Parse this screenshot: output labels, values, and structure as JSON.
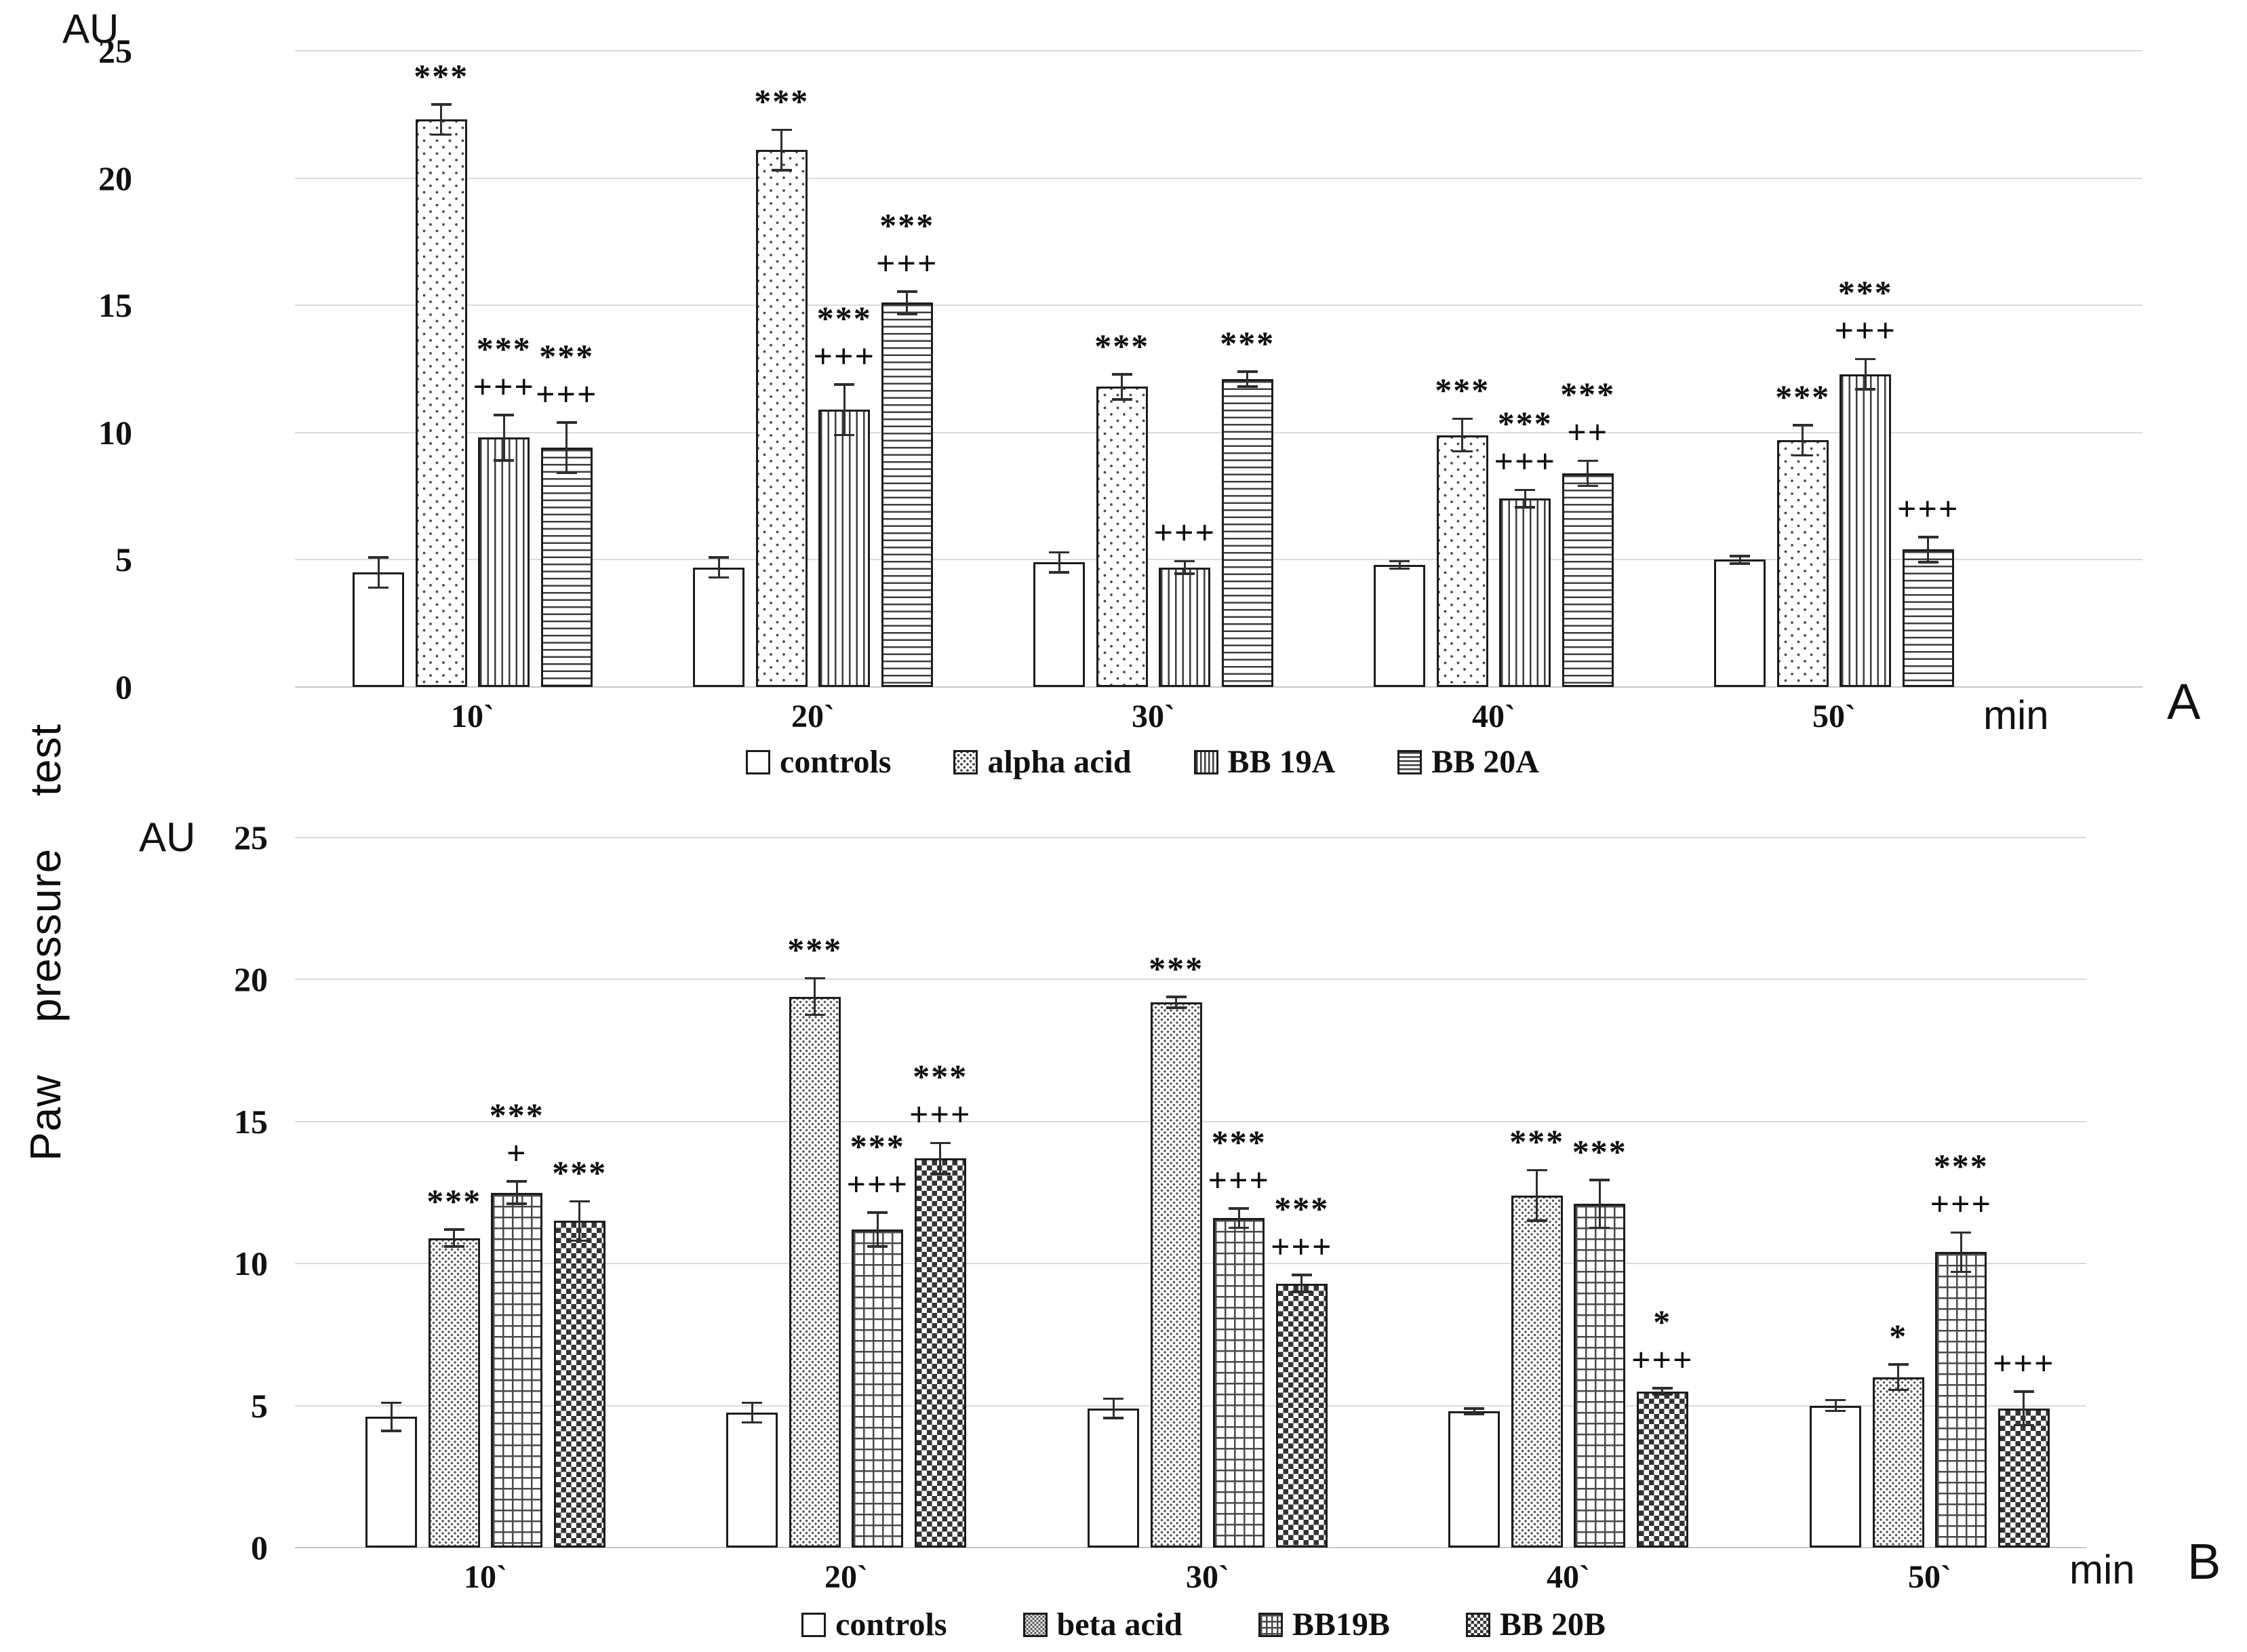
{
  "figure": {
    "y_axis_title_rotated": "Paw  pressure  test"
  },
  "chart_data": [
    {
      "type": "bar",
      "panel_label": "A",
      "y_unit": "AU",
      "x_unit": "min",
      "ylim": [
        0,
        25
      ],
      "yticks": [
        0,
        5,
        10,
        15,
        20,
        25
      ],
      "grid": true,
      "legend_position": "bottom",
      "categories": [
        "10`",
        "20`",
        "30`",
        "40`",
        "50`"
      ],
      "series": [
        {
          "name": "controls",
          "pattern": "open",
          "values": [
            4.5,
            4.7,
            4.9,
            4.8,
            5.0
          ],
          "errors": [
            0.6,
            0.4,
            0.4,
            0.15,
            0.15
          ],
          "annotations": [
            "",
            "",
            "",
            "",
            ""
          ]
        },
        {
          "name": "alpha acid",
          "pattern": "dots-sparse",
          "values": [
            22.3,
            21.1,
            11.8,
            9.9,
            9.7
          ],
          "errors": [
            0.6,
            0.8,
            0.5,
            0.65,
            0.6
          ],
          "annotations": [
            "***",
            "***",
            "***",
            "***",
            "***"
          ]
        },
        {
          "name": "BB 19A",
          "pattern": "vertical-lines",
          "values": [
            9.8,
            10.9,
            4.7,
            7.4,
            12.3
          ],
          "errors": [
            0.9,
            1.0,
            0.25,
            0.35,
            0.6
          ],
          "annotations": [
            "***\n+++",
            "***\n+++",
            "+++",
            "***\n+++",
            "***\n+++"
          ]
        },
        {
          "name": "BB 20A",
          "pattern": "horizontal-lines",
          "values": [
            9.4,
            15.1,
            12.1,
            8.4,
            5.4
          ],
          "errors": [
            1.0,
            0.45,
            0.3,
            0.5,
            0.5
          ],
          "annotations": [
            "***\n+++",
            "***\n+++",
            "***",
            "***\n++",
            "+++"
          ]
        }
      ]
    },
    {
      "type": "bar",
      "panel_label": "B",
      "y_unit": "AU",
      "x_unit": "min",
      "ylim": [
        0,
        25
      ],
      "yticks": [
        0,
        5,
        10,
        15,
        20,
        25
      ],
      "grid": true,
      "legend_position": "bottom",
      "categories": [
        "10`",
        "20`",
        "30`",
        "40`",
        "50`"
      ],
      "series": [
        {
          "name": "controls",
          "pattern": "open",
          "values": [
            4.6,
            4.75,
            4.9,
            4.8,
            5.0
          ],
          "errors": [
            0.5,
            0.35,
            0.35,
            0.1,
            0.2
          ],
          "annotations": [
            "",
            "",
            "",
            "",
            ""
          ]
        },
        {
          "name": "beta acid",
          "pattern": "dots-dense",
          "values": [
            10.9,
            19.4,
            19.2,
            12.4,
            6.0
          ],
          "errors": [
            0.3,
            0.65,
            0.2,
            0.9,
            0.45
          ],
          "annotations": [
            "***",
            "***",
            "***",
            "***",
            "*"
          ]
        },
        {
          "name": "BB19B",
          "pattern": "grid",
          "values": [
            12.5,
            11.2,
            11.6,
            12.1,
            10.4
          ],
          "errors": [
            0.4,
            0.6,
            0.35,
            0.85,
            0.7
          ],
          "annotations": [
            "***\n+",
            "***\n+++",
            "***\n+++",
            "***",
            "***\n+++"
          ]
        },
        {
          "name": "BB 20B",
          "pattern": "checkerboard",
          "values": [
            11.5,
            13.7,
            9.3,
            5.5,
            4.9
          ],
          "errors": [
            0.7,
            0.55,
            0.3,
            0.12,
            0.6
          ],
          "annotations": [
            "***",
            "***\n+++",
            "***\n+++",
            "*\n+++",
            "+++"
          ]
        }
      ]
    }
  ]
}
